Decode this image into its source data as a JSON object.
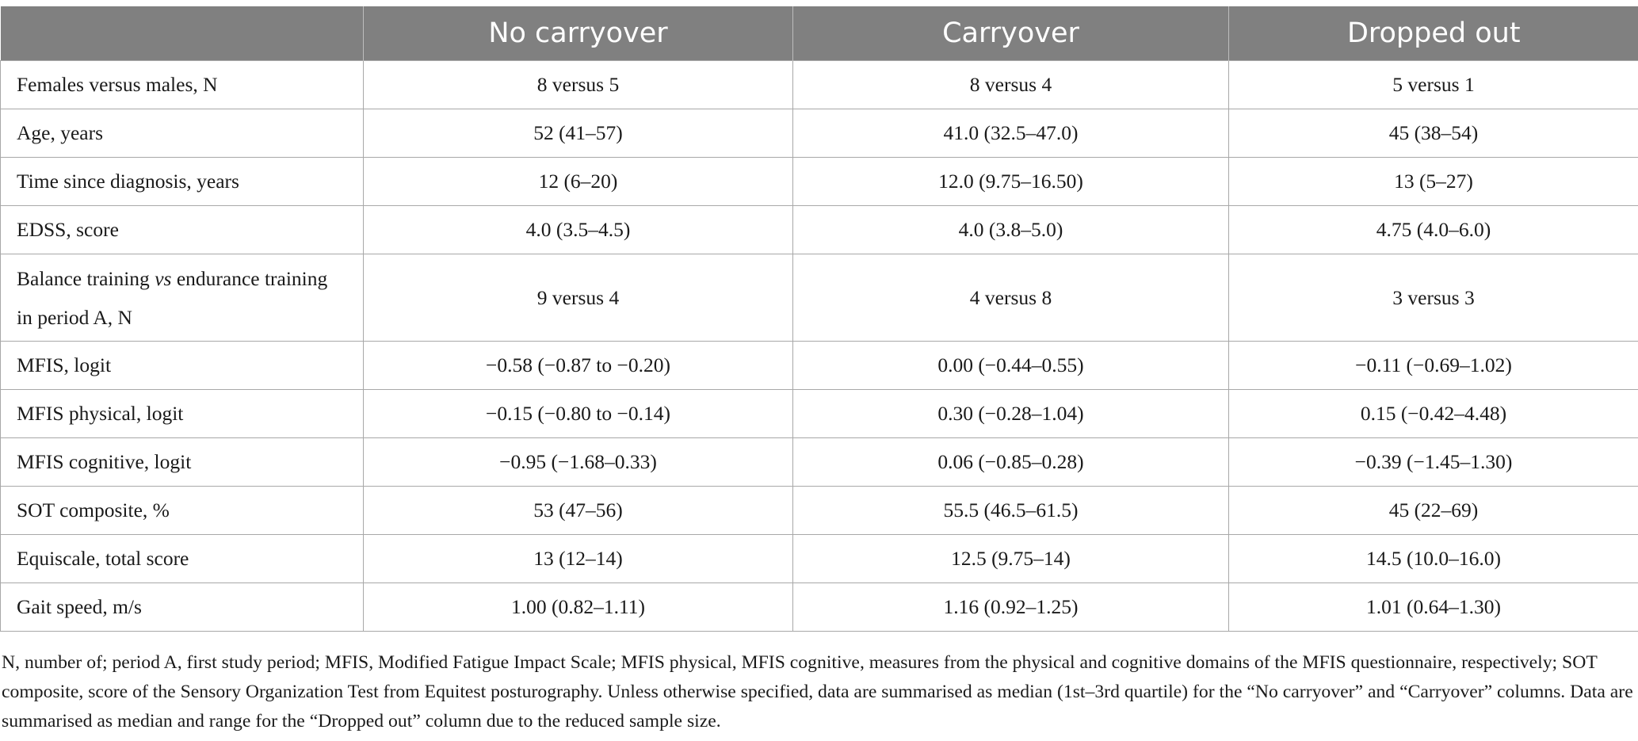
{
  "table": {
    "headers": [
      "",
      "No carryover",
      "Carryover",
      "Dropped out"
    ],
    "rows": [
      {
        "label": "Females versus males, N",
        "cells": [
          "8 versus 5",
          "8 versus 4",
          "5 versus 1"
        ]
      },
      {
        "label": "Age, years",
        "cells": [
          "52 (41–57)",
          "41.0 (32.5–47.0)",
          "45 (38–54)"
        ]
      },
      {
        "label": "Time since diagnosis, years",
        "cells": [
          "12 (6–20)",
          "12.0 (9.75–16.50)",
          "13 (5–27)"
        ]
      },
      {
        "label": "EDSS, score",
        "cells": [
          "4.0 (3.5–4.5)",
          "4.0 (3.8–5.0)",
          "4.75 (4.0–6.0)"
        ]
      },
      {
        "label_pre": "Balance training ",
        "label_em": "vs",
        "label_post": " endurance training in period A, N",
        "cells": [
          "9 versus 4",
          "4 versus 8",
          "3 versus 3"
        ]
      },
      {
        "label": "MFIS, logit",
        "cells": [
          "−0.58 (−0.87 to −0.20)",
          "0.00 (−0.44–0.55)",
          "−0.11 (−0.69–1.02)"
        ]
      },
      {
        "label": "MFIS physical, logit",
        "cells": [
          "−0.15 (−0.80 to −0.14)",
          "0.30 (−0.28–1.04)",
          "0.15 (−0.42–4.48)"
        ]
      },
      {
        "label": "MFIS cognitive, logit",
        "cells": [
          "−0.95 (−1.68–0.33)",
          "0.06 (−0.85–0.28)",
          "−0.39 (−1.45–1.30)"
        ]
      },
      {
        "label": "SOT composite, %",
        "cells": [
          "53 (47–56)",
          "55.5 (46.5–61.5)",
          "45 (22–69)"
        ]
      },
      {
        "label": "Equiscale, total score",
        "cells": [
          "13 (12–14)",
          "12.5 (9.75–14)",
          "14.5 (10.0–16.0)"
        ]
      },
      {
        "label": "Gait speed, m/s",
        "cells": [
          "1.00 (0.82–1.11)",
          "1.16 (0.92–1.25)",
          "1.01 (0.64–1.30)"
        ]
      }
    ]
  },
  "footnote": "N, number of; period A, first study period; MFIS, Modified Fatigue Impact Scale; MFIS physical, MFIS cognitive, measures from the physical and cognitive domains of the MFIS questionnaire, respectively; SOT composite, score of the Sensory Organization Test from Equitest posturography. Unless otherwise specified, data are summarised as median (1st–3rd quartile) for the “No carryover” and “Carryover” columns. Data are summarised as median and range for the “Dropped out” column due to the reduced sample size."
}
